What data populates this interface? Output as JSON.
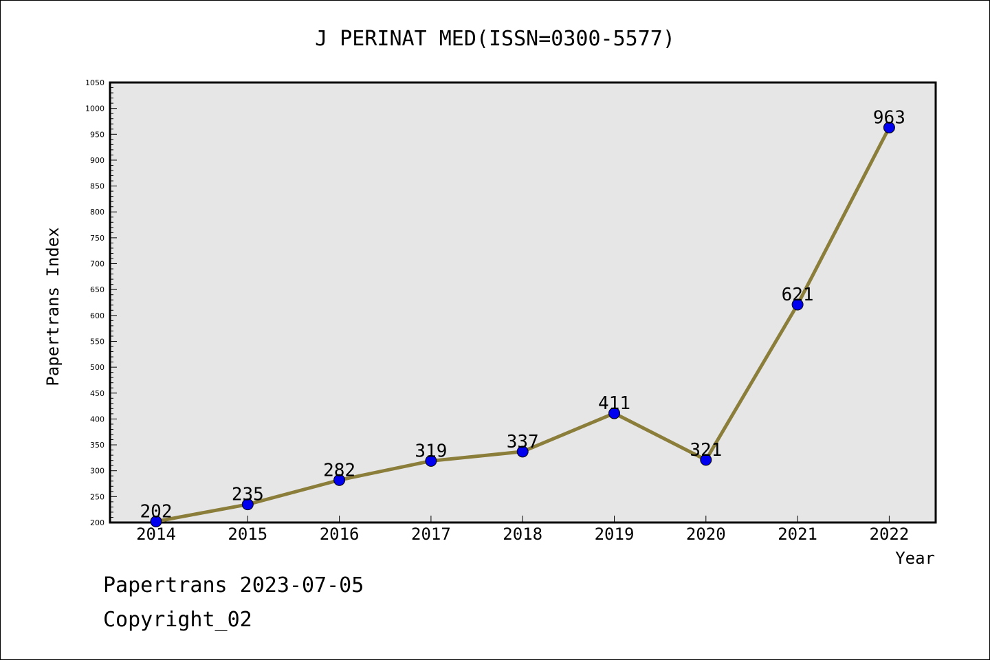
{
  "chart_data": {
    "type": "line",
    "title": "J PERINAT MED(ISSN=0300-5577)",
    "xlabel": "Year",
    "ylabel": "Papertrans Index",
    "categories": [
      "2014",
      "2015",
      "2016",
      "2017",
      "2018",
      "2019",
      "2020",
      "2021",
      "2022"
    ],
    "values": [
      202,
      235,
      282,
      319,
      337,
      411,
      321,
      621,
      963
    ],
    "ylim": [
      200,
      1050
    ],
    "yticks": [
      200,
      250,
      300,
      350,
      400,
      450,
      500,
      550,
      600,
      650,
      700,
      750,
      800,
      850,
      900,
      950,
      1000,
      1050
    ],
    "grid": false,
    "colors": {
      "line": "#8B7D3A",
      "marker": "#0000EE",
      "plot_bg": "#E6E6E6"
    }
  },
  "footer": {
    "date_line": "Papertrans 2023-07-05",
    "copyright": "Copyright_02"
  }
}
